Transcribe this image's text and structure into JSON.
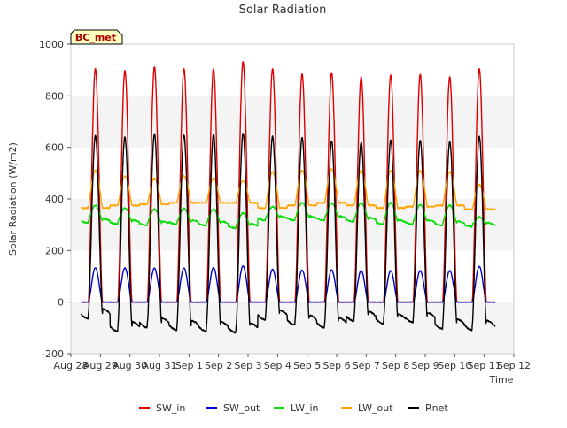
{
  "chart_data": {
    "type": "line",
    "title": "Solar Radiation",
    "xlabel": "Time",
    "ylabel": "Solar Radiation (W/m2)",
    "station_label": "BC_met",
    "xlim": [
      "Aug 28",
      "Sep 12"
    ],
    "ylim": [
      -200,
      1000
    ],
    "yticks": [
      -200,
      0,
      200,
      400,
      600,
      800,
      1000
    ],
    "xticks": [
      "Aug 28",
      "Aug 29",
      "Aug 30",
      "Aug 31",
      "Sep 1",
      "Sep 2",
      "Sep 3",
      "Sep 4",
      "Sep 5",
      "Sep 6",
      "Sep 7",
      "Sep 8",
      "Sep 9",
      "Sep 10",
      "Sep 11",
      "Sep 12"
    ],
    "grid": "horizontal bands",
    "legend_position": "bottom",
    "daily_peak_dates": [
      "Aug 28",
      "Aug 29",
      "Aug 30",
      "Aug 31",
      "Sep 1",
      "Sep 2",
      "Sep 3",
      "Sep 4",
      "Sep 5",
      "Sep 6",
      "Sep 7",
      "Sep 8",
      "Sep 9",
      "Sep 10"
    ],
    "series": [
      {
        "name": "SW_in",
        "color": "#dd0000",
        "night": 0,
        "peaks": [
          905,
          898,
          912,
          905,
          905,
          932,
          905,
          885,
          890,
          873,
          880,
          883,
          873,
          905
        ]
      },
      {
        "name": "SW_out",
        "color": "#0000cc",
        "night": 0,
        "peaks": [
          133,
          133,
          132,
          132,
          134,
          140,
          127,
          124,
          125,
          122,
          122,
          122,
          122,
          138
        ]
      },
      {
        "name": "LW_in",
        "color": "#00dd00",
        "night": [
          315,
          310,
          305,
          310,
          305,
          295,
          325,
          325,
          325,
          320,
          310,
          310,
          305,
          300
        ],
        "peaks": [
          375,
          365,
          360,
          362,
          360,
          345,
          370,
          385,
          383,
          385,
          385,
          378,
          375,
          330
        ]
      },
      {
        "name": "LW_out",
        "color": "#ffa500",
        "night": [
          365,
          375,
          380,
          385,
          385,
          385,
          365,
          375,
          385,
          375,
          365,
          370,
          375,
          360
        ],
        "peaks": [
          510,
          490,
          480,
          490,
          480,
          470,
          505,
          510,
          515,
          510,
          510,
          510,
          505,
          455
        ]
      },
      {
        "name": "Rnet",
        "color": "#000000",
        "night": [
          -45,
          -95,
          -80,
          -90,
          -95,
          -100,
          -50,
          -70,
          -80,
          -55,
          -65,
          -60,
          -85,
          -90
        ],
        "peaks": [
          645,
          642,
          652,
          648,
          652,
          655,
          642,
          638,
          625,
          620,
          628,
          628,
          622,
          642
        ]
      }
    ]
  }
}
